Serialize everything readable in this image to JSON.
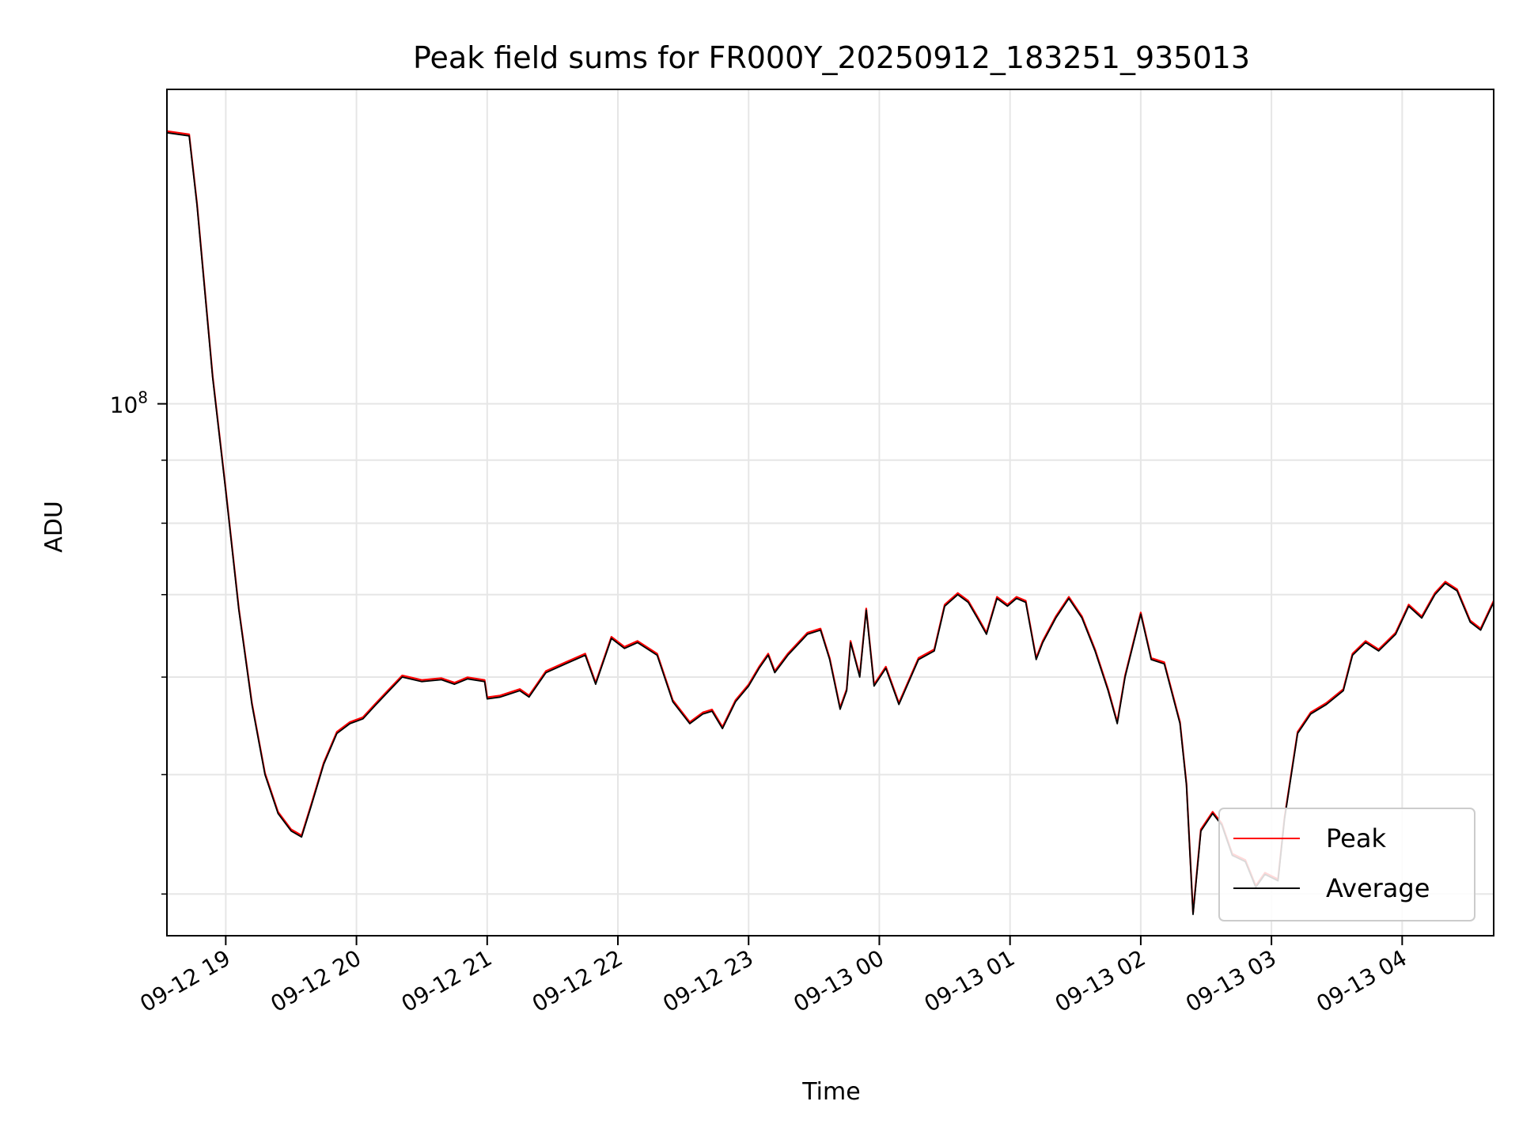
{
  "chart_data": {
    "type": "line",
    "title": "Peak field sums for FR000Y_20250912_183251_935013",
    "xlabel": "Time",
    "ylabel": "ADU",
    "yscale": "log",
    "xlim_hours": [
      18.55,
      28.7
    ],
    "ylim": [
      37000000,
      180000000
    ],
    "grid": true,
    "legend_position": "lower-right",
    "x_ticks": [
      {
        "hour": 19,
        "label": "09-12 19"
      },
      {
        "hour": 20,
        "label": "09-12 20"
      },
      {
        "hour": 21,
        "label": "09-12 21"
      },
      {
        "hour": 22,
        "label": "09-12 22"
      },
      {
        "hour": 23,
        "label": "09-12 23"
      },
      {
        "hour": 24,
        "label": "09-13 00"
      },
      {
        "hour": 25,
        "label": "09-13 01"
      },
      {
        "hour": 26,
        "label": "09-13 02"
      },
      {
        "hour": 27,
        "label": "09-13 03"
      },
      {
        "hour": 28,
        "label": "09-13 04"
      }
    ],
    "y_major_ticks": [
      {
        "value": 100000000,
        "base": "10",
        "exp": "8"
      }
    ],
    "y_minor_ticks": [
      40000000,
      50000000,
      60000000,
      70000000,
      80000000,
      90000000
    ],
    "series": [
      {
        "name": "Peak",
        "color": "#ff0000"
      },
      {
        "name": "Average",
        "color": "#000000"
      }
    ],
    "points": [
      [
        18.55,
        166000000
      ],
      [
        18.72,
        165000000
      ],
      [
        18.78,
        145000000
      ],
      [
        18.9,
        105000000
      ],
      [
        19.0,
        85000000
      ],
      [
        19.1,
        68000000
      ],
      [
        19.2,
        57000000
      ],
      [
        19.3,
        50000000
      ],
      [
        19.4,
        46500000
      ],
      [
        19.5,
        45000000
      ],
      [
        19.58,
        44500000
      ],
      [
        19.65,
        47000000
      ],
      [
        19.75,
        51000000
      ],
      [
        19.85,
        54000000
      ],
      [
        19.95,
        55000000
      ],
      [
        20.05,
        55500000
      ],
      [
        20.15,
        57000000
      ],
      [
        20.25,
        58500000
      ],
      [
        20.35,
        60000000
      ],
      [
        20.5,
        59500000
      ],
      [
        20.65,
        59700000
      ],
      [
        20.75,
        59200000
      ],
      [
        20.85,
        59800000
      ],
      [
        20.98,
        59500000
      ],
      [
        21.0,
        57600000
      ],
      [
        21.1,
        57800000
      ],
      [
        21.25,
        58500000
      ],
      [
        21.32,
        57800000
      ],
      [
        21.45,
        60500000
      ],
      [
        21.6,
        61500000
      ],
      [
        21.75,
        62500000
      ],
      [
        21.83,
        59200000
      ],
      [
        21.95,
        64500000
      ],
      [
        22.05,
        63300000
      ],
      [
        22.15,
        64000000
      ],
      [
        22.3,
        62500000
      ],
      [
        22.42,
        57300000
      ],
      [
        22.55,
        55000000
      ],
      [
        22.65,
        56000000
      ],
      [
        22.72,
        56300000
      ],
      [
        22.8,
        54500000
      ],
      [
        22.9,
        57300000
      ],
      [
        23.0,
        59000000
      ],
      [
        23.08,
        61000000
      ],
      [
        23.15,
        62500000
      ],
      [
        23.2,
        60500000
      ],
      [
        23.3,
        62500000
      ],
      [
        23.45,
        65000000
      ],
      [
        23.55,
        65500000
      ],
      [
        23.62,
        62000000
      ],
      [
        23.7,
        56500000
      ],
      [
        23.75,
        58500000
      ],
      [
        23.78,
        64000000
      ],
      [
        23.85,
        60000000
      ],
      [
        23.9,
        68000000
      ],
      [
        23.96,
        59000000
      ],
      [
        24.05,
        61000000
      ],
      [
        24.15,
        57000000
      ],
      [
        24.3,
        62000000
      ],
      [
        24.42,
        63000000
      ],
      [
        24.5,
        68500000
      ],
      [
        24.6,
        70000000
      ],
      [
        24.68,
        69000000
      ],
      [
        24.75,
        67000000
      ],
      [
        24.82,
        65000000
      ],
      [
        24.9,
        69500000
      ],
      [
        24.98,
        68500000
      ],
      [
        25.05,
        69500000
      ],
      [
        25.12,
        69000000
      ],
      [
        25.2,
        62000000
      ],
      [
        25.25,
        64000000
      ],
      [
        25.35,
        67000000
      ],
      [
        25.45,
        69500000
      ],
      [
        25.55,
        67000000
      ],
      [
        25.65,
        63000000
      ],
      [
        25.75,
        58500000
      ],
      [
        25.82,
        55000000
      ],
      [
        25.88,
        60000000
      ],
      [
        26.0,
        67500000
      ],
      [
        26.08,
        62000000
      ],
      [
        26.18,
        61500000
      ],
      [
        26.3,
        55000000
      ],
      [
        26.35,
        49000000
      ],
      [
        26.4,
        38500000
      ],
      [
        26.46,
        45000000
      ],
      [
        26.55,
        46500000
      ],
      [
        26.62,
        45500000
      ],
      [
        26.7,
        43000000
      ],
      [
        26.8,
        42500000
      ],
      [
        26.88,
        40500000
      ],
      [
        26.95,
        41500000
      ],
      [
        27.05,
        41000000
      ],
      [
        27.1,
        46000000
      ],
      [
        27.2,
        54000000
      ],
      [
        27.3,
        56000000
      ],
      [
        27.42,
        57000000
      ],
      [
        27.55,
        58500000
      ],
      [
        27.62,
        62500000
      ],
      [
        27.72,
        64000000
      ],
      [
        27.82,
        63000000
      ],
      [
        27.95,
        65000000
      ],
      [
        28.05,
        68500000
      ],
      [
        28.15,
        67000000
      ],
      [
        28.25,
        70000000
      ],
      [
        28.33,
        71500000
      ],
      [
        28.42,
        70500000
      ],
      [
        28.52,
        66500000
      ],
      [
        28.6,
        65500000
      ],
      [
        28.7,
        69000000
      ]
    ]
  }
}
